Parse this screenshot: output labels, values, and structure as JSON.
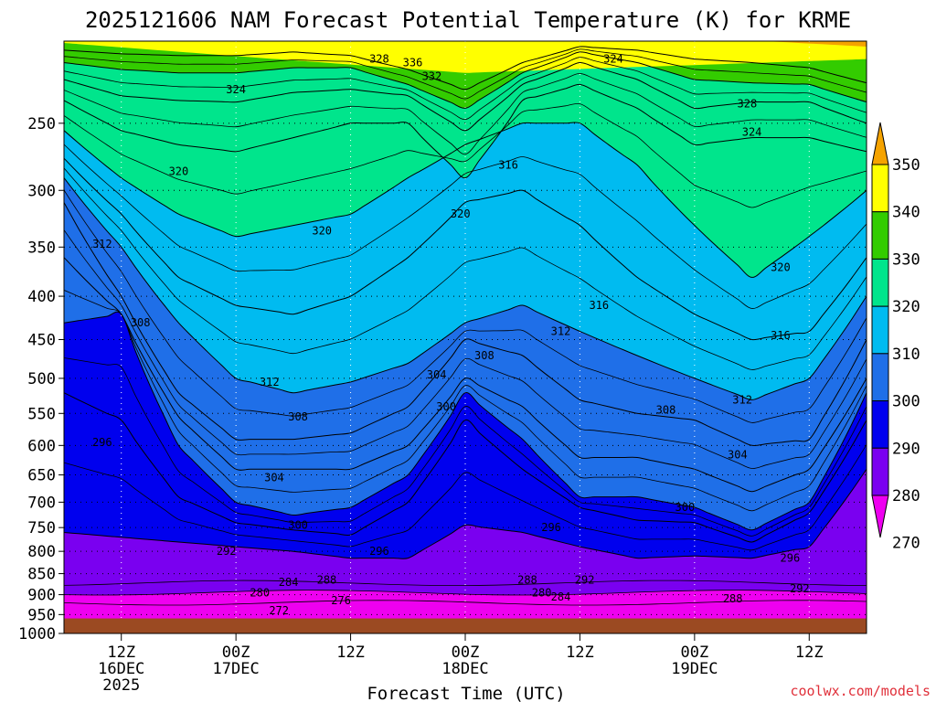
{
  "chart_data": {
    "type": "contour",
    "title": "2025121606 NAM Forecast Potential Temperature (K) for KRME",
    "xlabel": "Forecast Time (UTC)",
    "ylabel": "",
    "credit": "coolwx.com/models",
    "y_scale": "log-pressure",
    "y_range_hPa": [
      1000,
      200
    ],
    "y_ticks": [
      250,
      300,
      350,
      400,
      450,
      500,
      550,
      600,
      650,
      700,
      750,
      800,
      850,
      900,
      950,
      1000
    ],
    "x_range_hours": [
      0,
      84
    ],
    "x_ticks": [
      {
        "hour": 6,
        "lines": [
          "12Z",
          "16DEC",
          "2025"
        ]
      },
      {
        "hour": 18,
        "lines": [
          "00Z",
          "17DEC"
        ]
      },
      {
        "hour": 30,
        "lines": [
          "12Z"
        ]
      },
      {
        "hour": 42,
        "lines": [
          "00Z",
          "18DEC"
        ]
      },
      {
        "hour": 54,
        "lines": [
          "12Z"
        ]
      },
      {
        "hour": 66,
        "lines": [
          "00Z",
          "19DEC"
        ]
      },
      {
        "hour": 78,
        "lines": [
          "12Z"
        ]
      }
    ],
    "grid": true,
    "colorbar": {
      "labels": [
        350,
        340,
        330,
        320,
        310,
        300,
        290,
        280,
        270
      ],
      "bands": [
        {
          "from": 350,
          "to": 360,
          "color": "#f5a300"
        },
        {
          "from": 340,
          "to": 350,
          "color": "#ffff00"
        },
        {
          "from": 330,
          "to": 340,
          "color": "#33cc00"
        },
        {
          "from": 320,
          "to": 330,
          "color": "#00e58c"
        },
        {
          "from": 310,
          "to": 320,
          "color": "#00bbf0"
        },
        {
          "from": 300,
          "to": 310,
          "color": "#1f6fe8"
        },
        {
          "from": 290,
          "to": 300,
          "color": "#0000ee"
        },
        {
          "from": 280,
          "to": 290,
          "color": "#7a00f0"
        },
        {
          "from": 270,
          "to": 280,
          "color": "#ee00f0"
        }
      ]
    },
    "series": [
      {
        "theta": 292,
        "hours": [
          0,
          6,
          12,
          18,
          24,
          30,
          36,
          42,
          48,
          54,
          60,
          66,
          72,
          78,
          84
        ],
        "pressure": [
          760,
          770,
          780,
          790,
          800,
          815,
          815,
          745,
          760,
          790,
          815,
          810,
          815,
          790,
          640
        ]
      },
      {
        "theta": 296,
        "hours": [
          0,
          6,
          12,
          18,
          24,
          30,
          36,
          42,
          48,
          54,
          60,
          66,
          72,
          78,
          84
        ],
        "pressure": [
          520,
          560,
          690,
          740,
          755,
          765,
          700,
          560,
          640,
          710,
          735,
          740,
          780,
          720,
          560
        ]
      },
      {
        "theta": 300,
        "hours": [
          0,
          6,
          12,
          18,
          24,
          30,
          36,
          42,
          48,
          54,
          60,
          66,
          72,
          78,
          84
        ],
        "pressure": [
          430,
          420,
          600,
          700,
          725,
          710,
          650,
          520,
          590,
          690,
          690,
          710,
          755,
          700,
          520
        ]
      },
      {
        "theta": 304,
        "hours": [
          0,
          6,
          12,
          18,
          24,
          30,
          36,
          42,
          48,
          54,
          60,
          66,
          72,
          78,
          84
        ],
        "pressure": [
          360,
          420,
          555,
          640,
          640,
          640,
          600,
          500,
          540,
          620,
          620,
          640,
          680,
          640,
          500
        ]
      },
      {
        "theta": 308,
        "hours": [
          0,
          6,
          12,
          18,
          24,
          30,
          36,
          42,
          48,
          54,
          60,
          66,
          72,
          78,
          84
        ],
        "pressure": [
          310,
          400,
          520,
          590,
          590,
          580,
          540,
          450,
          470,
          530,
          550,
          560,
          600,
          590,
          450
        ]
      },
      {
        "theta": 312,
        "hours": [
          0,
          6,
          12,
          18,
          24,
          30,
          36,
          42,
          48,
          54,
          60,
          66,
          72,
          78,
          84
        ],
        "pressure": [
          290,
          350,
          430,
          500,
          520,
          505,
          480,
          430,
          410,
          440,
          470,
          500,
          530,
          500,
          400
        ]
      },
      {
        "theta": 316,
        "hours": [
          0,
          6,
          12,
          18,
          24,
          30,
          36,
          42,
          48,
          54,
          60,
          66,
          72,
          78,
          84
        ],
        "pressure": [
          275,
          320,
          380,
          410,
          420,
          400,
          360,
          310,
          300,
          330,
          380,
          420,
          450,
          440,
          360
        ]
      },
      {
        "theta": 320,
        "hours": [
          0,
          6,
          12,
          18,
          24,
          30,
          36,
          42,
          48,
          54,
          60,
          66,
          72,
          78,
          84
        ],
        "pressure": [
          255,
          290,
          320,
          340,
          330,
          320,
          290,
          265,
          250,
          250,
          280,
          330,
          380,
          340,
          300
        ]
      },
      {
        "theta": 324,
        "hours": [
          0,
          6,
          12,
          18,
          24,
          30,
          36,
          42,
          48,
          54,
          60,
          66,
          72,
          78,
          84
        ],
        "pressure": [
          235,
          255,
          265,
          270,
          260,
          250,
          250,
          290,
          235,
          225,
          240,
          265,
          260,
          260,
          270
        ]
      },
      {
        "theta": 328,
        "hours": [
          0,
          6,
          12,
          18,
          24,
          30,
          36,
          42,
          48,
          54,
          60,
          66,
          72,
          78,
          84
        ],
        "pressure": [
          222,
          232,
          235,
          236,
          230,
          228,
          232,
          255,
          225,
          212,
          222,
          240,
          236,
          236,
          250
        ]
      },
      {
        "theta": 332,
        "hours": [
          0,
          6,
          12,
          18,
          24,
          30,
          36,
          42,
          48,
          54,
          60,
          66,
          72,
          78,
          84
        ],
        "pressure": [
          212,
          216,
          218,
          218,
          215,
          215,
          225,
          240,
          218,
          206,
          212,
          222,
          224,
          225,
          236
        ]
      },
      {
        "theta": 336,
        "hours": [
          0,
          6,
          12,
          18,
          24,
          30,
          36,
          42,
          48,
          54,
          60,
          66,
          72,
          78,
          84
        ],
        "pressure": [
          205,
          207,
          208,
          208,
          206,
          208,
          216,
          228,
          212,
          203,
          205,
          210,
          212,
          215,
          224
        ]
      }
    ],
    "low_levels": [
      {
        "theta": 272,
        "pressure_at_hour_21": 940
      },
      {
        "theta": 276,
        "pressure_at_hour_27": 920
      },
      {
        "theta": 280,
        "pressure_at_hour_18": 905
      },
      {
        "theta": 284,
        "pressure_at_hour_21": 880
      },
      {
        "theta": 288,
        "pressure_at_hour_27": 875
      }
    ],
    "contour_labels": [
      {
        "text": "328",
        "hour": 33,
        "p": 210
      },
      {
        "text": "336",
        "hour": 36.5,
        "p": 212
      },
      {
        "text": "332",
        "hour": 38.5,
        "p": 220
      },
      {
        "text": "324",
        "hour": 57.5,
        "p": 210
      },
      {
        "text": "324",
        "hour": 18,
        "p": 228
      },
      {
        "text": "328",
        "hour": 71.5,
        "p": 237
      },
      {
        "text": "324",
        "hour": 72,
        "p": 256
      },
      {
        "text": "320",
        "hour": 12,
        "p": 285
      },
      {
        "text": "316",
        "hour": 46.5,
        "p": 280
      },
      {
        "text": "320",
        "hour": 41.5,
        "p": 320
      },
      {
        "text": "320",
        "hour": 27,
        "p": 335
      },
      {
        "text": "312",
        "hour": 4,
        "p": 347
      },
      {
        "text": "320",
        "hour": 75,
        "p": 370
      },
      {
        "text": "316",
        "hour": 56,
        "p": 410
      },
      {
        "text": "308",
        "hour": 8,
        "p": 430
      },
      {
        "text": "312",
        "hour": 52,
        "p": 440
      },
      {
        "text": "316",
        "hour": 75,
        "p": 445
      },
      {
        "text": "308",
        "hour": 44,
        "p": 470
      },
      {
        "text": "304",
        "hour": 39,
        "p": 495
      },
      {
        "text": "312",
        "hour": 21.5,
        "p": 505
      },
      {
        "text": "300",
        "hour": 40,
        "p": 540
      },
      {
        "text": "312",
        "hour": 71,
        "p": 530
      },
      {
        "text": "308",
        "hour": 63,
        "p": 545
      },
      {
        "text": "308",
        "hour": 24.5,
        "p": 555
      },
      {
        "text": "296",
        "hour": 4,
        "p": 595
      },
      {
        "text": "304",
        "hour": 70.5,
        "p": 615
      },
      {
        "text": "304",
        "hour": 22,
        "p": 655
      },
      {
        "text": "300",
        "hour": 65,
        "p": 710
      },
      {
        "text": "300",
        "hour": 24.5,
        "p": 745
      },
      {
        "text": "296",
        "hour": 51,
        "p": 750
      },
      {
        "text": "292",
        "hour": 17,
        "p": 800
      },
      {
        "text": "296",
        "hour": 33,
        "p": 800
      },
      {
        "text": "296",
        "hour": 76,
        "p": 815
      },
      {
        "text": "284",
        "hour": 23.5,
        "p": 870
      },
      {
        "text": "288",
        "hour": 27.5,
        "p": 865
      },
      {
        "text": "288",
        "hour": 48.5,
        "p": 865
      },
      {
        "text": "292",
        "hour": 54.5,
        "p": 865
      },
      {
        "text": "280",
        "hour": 20.5,
        "p": 895
      },
      {
        "text": "280",
        "hour": 50,
        "p": 895
      },
      {
        "text": "284",
        "hour": 52,
        "p": 905
      },
      {
        "text": "292",
        "hour": 77,
        "p": 885
      },
      {
        "text": "288",
        "hour": 70,
        "p": 910
      },
      {
        "text": "276",
        "hour": 29,
        "p": 915
      },
      {
        "text": "272",
        "hour": 22.5,
        "p": 940
      }
    ],
    "ground_pressure_hPa": 960
  }
}
